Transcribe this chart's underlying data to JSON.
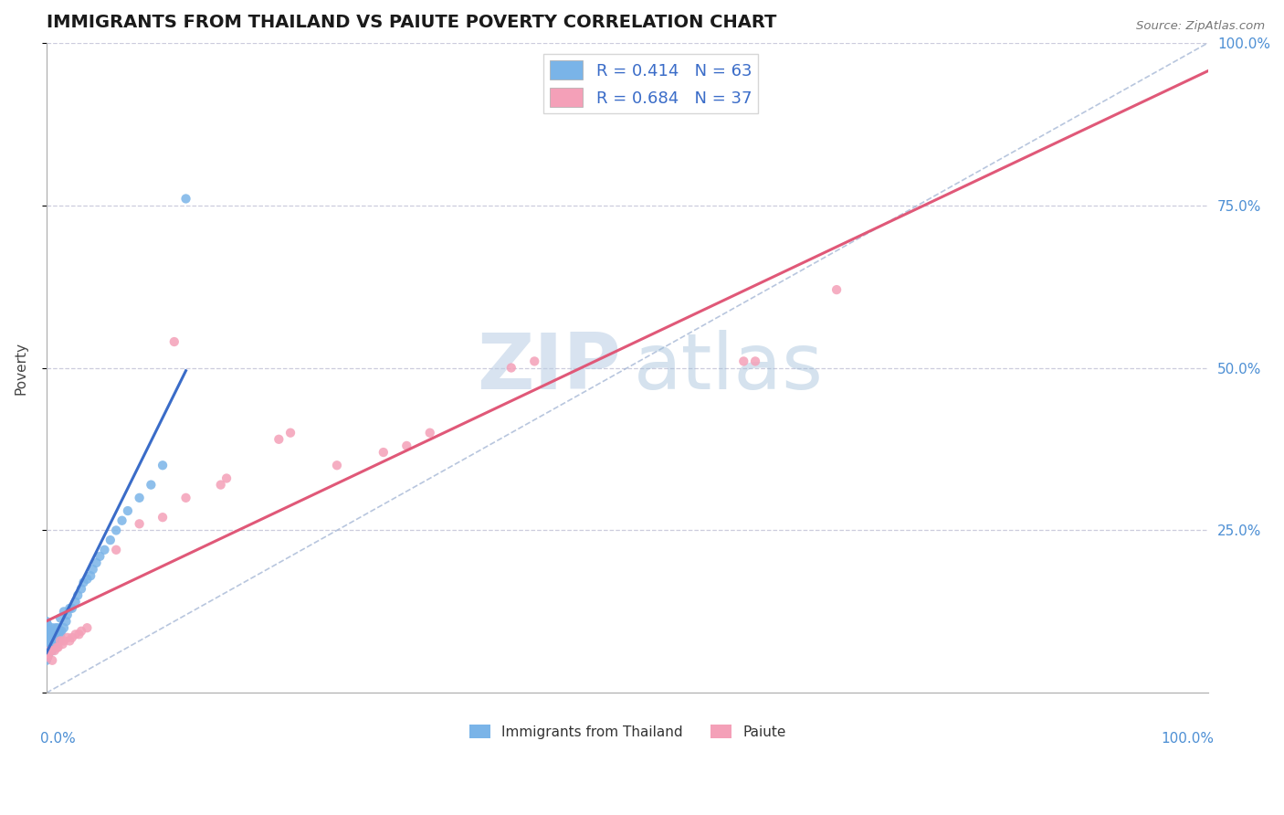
{
  "title": "IMMIGRANTS FROM THAILAND VS PAIUTE POVERTY CORRELATION CHART",
  "source": "Source: ZipAtlas.com",
  "ylabel": "Poverty",
  "thailand_color": "#7ab4e8",
  "paiute_color": "#f4a0b8",
  "thailand_trend_color": "#3a6cc8",
  "paiute_trend_color": "#e05878",
  "diagonal_color": "#9aaed0",
  "background_color": "#ffffff",
  "grid_color": "#ccccdd",
  "xlim": [
    0,
    1
  ],
  "ylim": [
    0,
    1
  ],
  "thailand_x": [
    0.0,
    0.0,
    0.0,
    0.0,
    0.0,
    0.0,
    0.0,
    0.0,
    0.001,
    0.001,
    0.001,
    0.001,
    0.001,
    0.001,
    0.002,
    0.002,
    0.002,
    0.002,
    0.003,
    0.003,
    0.003,
    0.004,
    0.004,
    0.005,
    0.005,
    0.005,
    0.006,
    0.006,
    0.007,
    0.007,
    0.008,
    0.008,
    0.009,
    0.01,
    0.01,
    0.011,
    0.012,
    0.012,
    0.013,
    0.015,
    0.015,
    0.017,
    0.018,
    0.02,
    0.022,
    0.025,
    0.027,
    0.03,
    0.032,
    0.035,
    0.038,
    0.04,
    0.043,
    0.046,
    0.05,
    0.055,
    0.06,
    0.065,
    0.07,
    0.08,
    0.09,
    0.1,
    0.12
  ],
  "thailand_y": [
    0.055,
    0.065,
    0.075,
    0.085,
    0.095,
    0.1,
    0.11,
    0.05,
    0.055,
    0.065,
    0.075,
    0.085,
    0.095,
    0.105,
    0.06,
    0.07,
    0.08,
    0.09,
    0.065,
    0.08,
    0.095,
    0.07,
    0.09,
    0.065,
    0.08,
    0.1,
    0.075,
    0.09,
    0.08,
    0.095,
    0.075,
    0.1,
    0.085,
    0.08,
    0.1,
    0.095,
    0.09,
    0.115,
    0.095,
    0.1,
    0.125,
    0.11,
    0.12,
    0.13,
    0.13,
    0.14,
    0.15,
    0.16,
    0.17,
    0.175,
    0.18,
    0.19,
    0.2,
    0.21,
    0.22,
    0.235,
    0.25,
    0.265,
    0.28,
    0.3,
    0.32,
    0.35,
    0.76
  ],
  "paiute_x": [
    0.0,
    0.001,
    0.002,
    0.003,
    0.004,
    0.005,
    0.007,
    0.009,
    0.01,
    0.012,
    0.014,
    0.015,
    0.018,
    0.02,
    0.022,
    0.025,
    0.028,
    0.03,
    0.035,
    0.06,
    0.08,
    0.1,
    0.11,
    0.12,
    0.15,
    0.155,
    0.2,
    0.21,
    0.25,
    0.29,
    0.31,
    0.33,
    0.4,
    0.42,
    0.6,
    0.61,
    0.68
  ],
  "paiute_y": [
    0.06,
    0.055,
    0.06,
    0.065,
    0.065,
    0.05,
    0.065,
    0.07,
    0.07,
    0.08,
    0.075,
    0.08,
    0.085,
    0.08,
    0.085,
    0.09,
    0.09,
    0.095,
    0.1,
    0.22,
    0.26,
    0.27,
    0.54,
    0.3,
    0.32,
    0.33,
    0.39,
    0.4,
    0.35,
    0.37,
    0.38,
    0.4,
    0.5,
    0.51,
    0.51,
    0.51,
    0.62
  ],
  "legend_top_entries": [
    {
      "label": "R = 0.414   N = 63",
      "color": "#7ab4e8"
    },
    {
      "label": "R = 0.684   N = 37",
      "color": "#f4a0b8"
    }
  ],
  "legend_bottom_entries": [
    {
      "label": "Immigrants from Thailand",
      "color": "#7ab4e8"
    },
    {
      "label": "Paiute",
      "color": "#f4a0b8"
    }
  ]
}
